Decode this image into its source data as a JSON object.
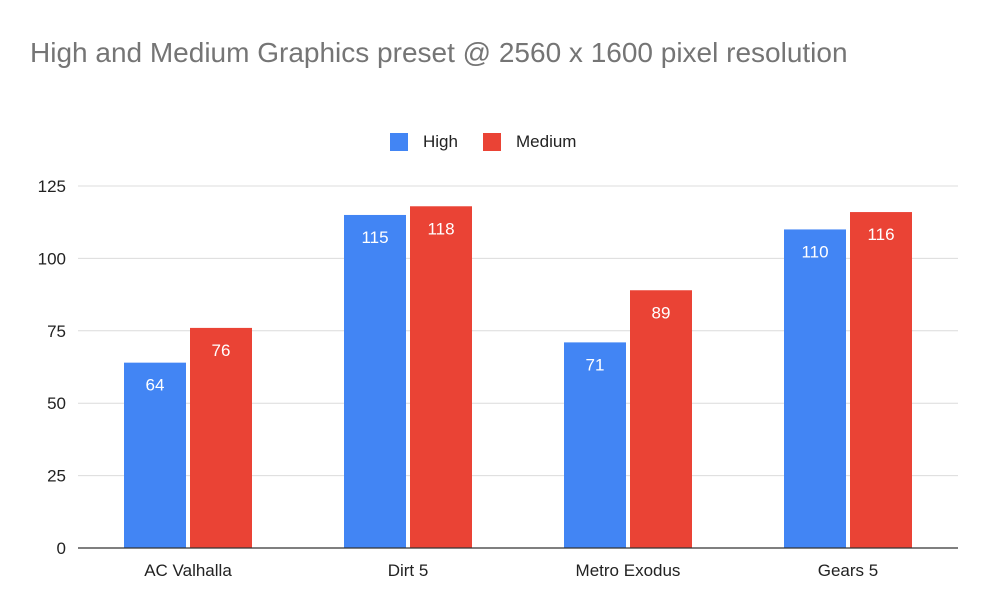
{
  "chart_data": {
    "type": "bar",
    "title": "High and Medium Graphics preset @ 2560 x 1600 pixel resolution",
    "categories": [
      "AC Valhalla",
      "Dirt 5",
      "Metro Exodus",
      "Gears 5"
    ],
    "series": [
      {
        "name": "High",
        "color": "#4285f4",
        "values": [
          64,
          115,
          71,
          110
        ]
      },
      {
        "name": "Medium",
        "color": "#ea4335",
        "values": [
          76,
          118,
          89,
          116
        ]
      }
    ],
    "ylim": [
      0,
      125
    ],
    "yticks": [
      0,
      25,
      50,
      75,
      100,
      125
    ],
    "grid": true,
    "legend_position": "top",
    "data_labels": true
  }
}
